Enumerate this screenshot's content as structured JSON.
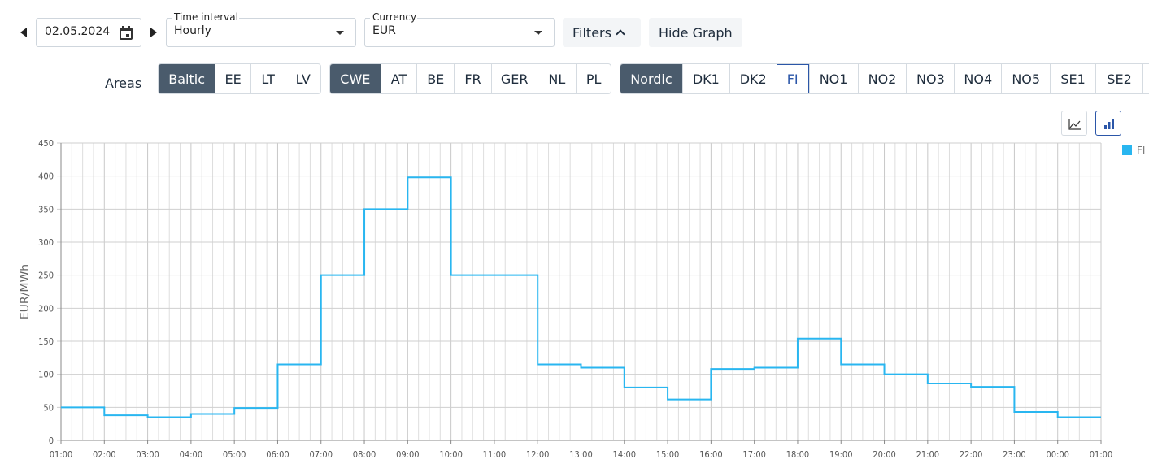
{
  "toolbar": {
    "date_value": "02.05.2024",
    "time_interval_label": "Time interval",
    "time_interval_value": "Hourly",
    "currency_label": "Currency",
    "currency_value": "EUR",
    "filters_label": "Filters",
    "hide_graph_label": "Hide Graph"
  },
  "areas": {
    "label": "Areas",
    "groups": [
      {
        "head": "Baltic",
        "items": [
          "EE",
          "LT",
          "LV"
        ]
      },
      {
        "head": "CWE",
        "items": [
          "AT",
          "BE",
          "FR",
          "GER",
          "NL",
          "PL"
        ]
      },
      {
        "head": "Nordic",
        "items": [
          "DK1",
          "DK2",
          "FI",
          "NO1",
          "NO2",
          "NO3",
          "NO4",
          "NO5",
          "SE1",
          "SE2"
        ]
      }
    ],
    "selected": "FI"
  },
  "chart_data": {
    "type": "line",
    "step": true,
    "ylabel": "EUR/MWh",
    "ylim": [
      0,
      450
    ],
    "yticks": [
      0,
      50,
      100,
      150,
      200,
      250,
      300,
      350,
      400,
      450
    ],
    "xticks": [
      "01:00",
      "02:00",
      "03:00",
      "04:00",
      "05:00",
      "06:00",
      "07:00",
      "08:00",
      "09:00",
      "10:00",
      "11:00",
      "12:00",
      "13:00",
      "14:00",
      "15:00",
      "16:00",
      "17:00",
      "18:00",
      "19:00",
      "20:00",
      "21:00",
      "22:00",
      "23:00",
      "00:00",
      "01:00"
    ],
    "grid": true,
    "legend_position": "top-right",
    "series": [
      {
        "name": "FI",
        "color": "#29b6f0",
        "values": [
          50,
          38,
          35,
          40,
          49,
          115,
          250,
          350,
          398,
          250,
          250,
          115,
          110,
          80,
          62,
          108,
          110,
          154,
          115,
          100,
          86,
          81,
          43,
          35
        ]
      }
    ]
  }
}
